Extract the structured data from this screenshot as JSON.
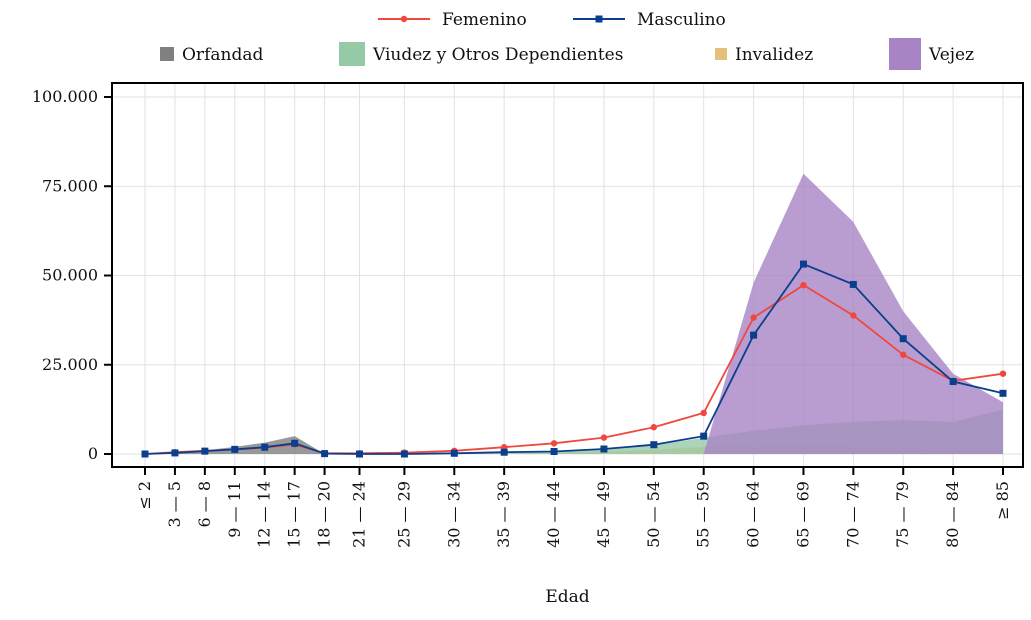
{
  "chart_data": {
    "type": "area",
    "xlabel": "Edad",
    "ylabel": "",
    "ylim": [
      0,
      100000
    ],
    "y_ticks": [
      0,
      25000,
      50000,
      75000,
      100000
    ],
    "y_tick_labels": [
      "0",
      "25.000",
      "50.000",
      "75.000",
      "100.000"
    ],
    "categories": [
      "≤ 2",
      "3 — 5",
      "6 — 8",
      "9 — 11",
      "12 — 14",
      "15 — 17",
      "18 — 20",
      "21 — 24",
      "25 — 29",
      "30 — 34",
      "35 — 39",
      "40 — 44",
      "45 — 49",
      "50 — 54",
      "55 — 59",
      "60 — 64",
      "65 — 69",
      "70 — 74",
      "75 — 79",
      "80 — 84",
      "≥ 85"
    ],
    "x_positions": [
      1,
      4,
      7,
      10,
      13,
      16,
      19,
      22.5,
      27,
      32,
      37,
      42,
      47,
      52,
      57,
      62,
      67,
      72,
      77,
      82,
      87
    ],
    "xlim": [
      1,
      87
    ],
    "grid": true,
    "legend_placement": "top",
    "stacked_series": [
      {
        "name": "Orfandad",
        "color": "#808080",
        "values": [
          0,
          300,
          1000,
          2000,
          3200,
          5000,
          0,
          0,
          0,
          0,
          0,
          0,
          0,
          0,
          0,
          0,
          0,
          0,
          0,
          0,
          0
        ]
      },
      {
        "name": "Invalidez",
        "color": "#e3c17c",
        "values": [
          0,
          0,
          0,
          0,
          0,
          0,
          0,
          0,
          0,
          0,
          200,
          400,
          700,
          1200,
          2000,
          2000,
          2000,
          2000,
          1500,
          1200,
          1200
        ]
      },
      {
        "name": "Viudez y Otros Dependientes",
        "color": "#96c9a6",
        "values": [
          0,
          0,
          0,
          0,
          0,
          0,
          0,
          0,
          0,
          200,
          500,
          800,
          1500,
          2500,
          4500,
          6500,
          8000,
          9000,
          9500,
          9000,
          12500
        ]
      },
      {
        "name": "Vejez",
        "color": "#a884c4",
        "values": [
          0,
          0,
          0,
          0,
          0,
          0,
          0,
          0,
          0,
          0,
          0,
          0,
          0,
          0,
          0,
          48000,
          78500,
          65000,
          40000,
          22500,
          14500
        ]
      }
    ],
    "line_series": [
      {
        "name": "Femenino",
        "color": "#f0483e",
        "marker": "circle",
        "values": [
          0,
          500,
          900,
          1300,
          1800,
          2700,
          200,
          200,
          400,
          900,
          1900,
          3000,
          4600,
          7500,
          11500,
          38200,
          47300,
          38800,
          27800,
          20500,
          22500
        ]
      },
      {
        "name": "Masculino",
        "color": "#0b3f8e",
        "marker": "square",
        "values": [
          0,
          300,
          800,
          1300,
          1900,
          3000,
          100,
          0,
          0,
          200,
          500,
          700,
          1400,
          2600,
          5000,
          33300,
          53200,
          47500,
          32300,
          20300,
          17000
        ]
      }
    ]
  }
}
